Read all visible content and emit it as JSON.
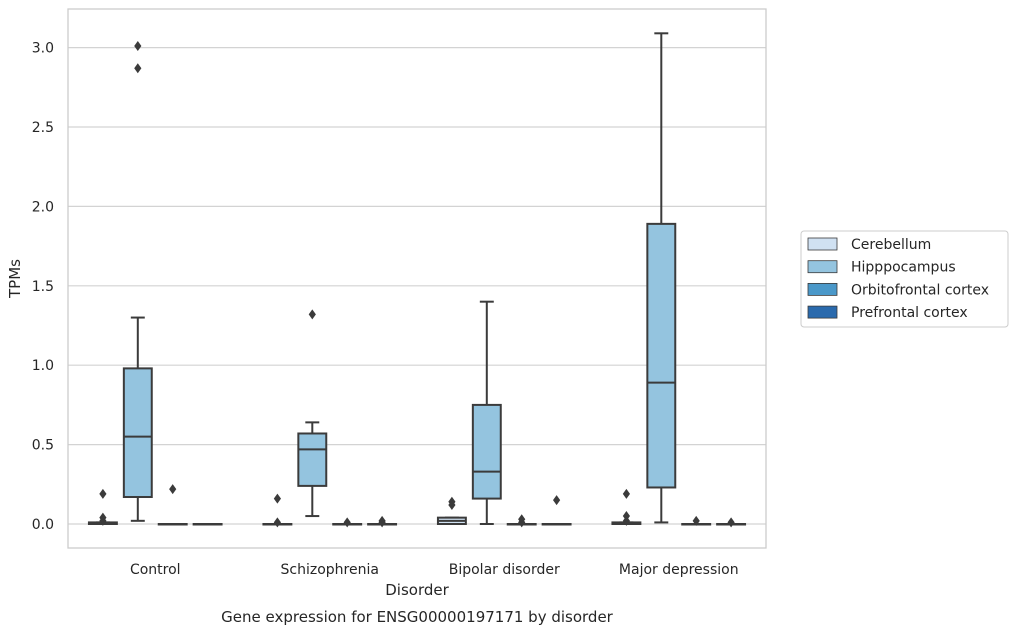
{
  "chart_data": {
    "type": "box",
    "caption": "Gene expression for ENSG00000197171 by disorder",
    "xlabel": "Disorder",
    "ylabel": "TPMs",
    "ylim": [
      -0.15,
      3.25
    ],
    "yticks": [
      "0.0",
      "0.5",
      "1.0",
      "1.5",
      "2.0",
      "2.5",
      "3.0"
    ],
    "grid": "horizontal",
    "legend_position": "right",
    "categories": [
      "Control",
      "Schizophrenia",
      "Bipolar disorder",
      "Major depression"
    ],
    "series": [
      {
        "name": "Cerebellum",
        "color": "#d0e1f2",
        "boxes": [
          {
            "whislo": 0.0,
            "q1": 0.0,
            "med": 0.0,
            "q3": 0.01,
            "whishi": 0.01,
            "fliers": [
              0.19,
              0.04,
              0.02
            ]
          },
          {
            "whislo": 0.0,
            "q1": 0.0,
            "med": 0.0,
            "q3": 0.0,
            "whishi": 0.0,
            "fliers": [
              0.16,
              0.01
            ]
          },
          {
            "whislo": 0.0,
            "q1": 0.0,
            "med": 0.02,
            "q3": 0.04,
            "whishi": 0.04,
            "fliers": [
              0.14,
              0.12
            ]
          },
          {
            "whislo": 0.0,
            "q1": 0.0,
            "med": 0.0,
            "q3": 0.01,
            "whishi": 0.01,
            "fliers": [
              0.19,
              0.05,
              0.02
            ]
          }
        ]
      },
      {
        "name": "Hipppocampus",
        "color": "#94c4df",
        "boxes": [
          {
            "whislo": 0.02,
            "q1": 0.17,
            "med": 0.55,
            "q3": 0.98,
            "whishi": 1.3,
            "fliers": [
              3.01,
              2.87
            ]
          },
          {
            "whislo": 0.05,
            "q1": 0.24,
            "med": 0.47,
            "q3": 0.57,
            "whishi": 0.64,
            "fliers": [
              1.32
            ]
          },
          {
            "whislo": 0.0,
            "q1": 0.16,
            "med": 0.33,
            "q3": 0.75,
            "whishi": 1.4,
            "fliers": []
          },
          {
            "whislo": 0.01,
            "q1": 0.23,
            "med": 0.89,
            "q3": 1.89,
            "whishi": 3.09,
            "fliers": []
          }
        ]
      },
      {
        "name": "Orbitofrontal cortex",
        "color": "#4a98c9",
        "boxes": [
          {
            "whislo": 0.0,
            "q1": 0.0,
            "med": 0.0,
            "q3": 0.0,
            "whishi": 0.0,
            "fliers": [
              0.22
            ]
          },
          {
            "whislo": 0.0,
            "q1": 0.0,
            "med": 0.0,
            "q3": 0.0,
            "whishi": 0.0,
            "fliers": [
              0.01
            ]
          },
          {
            "whislo": 0.0,
            "q1": 0.0,
            "med": 0.0,
            "q3": 0.0,
            "whishi": 0.0,
            "fliers": [
              0.03,
              0.01
            ]
          },
          {
            "whislo": 0.0,
            "q1": 0.0,
            "med": 0.0,
            "q3": 0.0,
            "whishi": 0.0,
            "fliers": [
              0.02
            ]
          }
        ]
      },
      {
        "name": "Prefrontal cortex",
        "color": "#2a6aad",
        "boxes": [
          {
            "whislo": 0.0,
            "q1": 0.0,
            "med": 0.0,
            "q3": 0.0,
            "whishi": 0.0,
            "fliers": []
          },
          {
            "whislo": 0.0,
            "q1": 0.0,
            "med": 0.0,
            "q3": 0.0,
            "whishi": 0.0,
            "fliers": [
              0.02,
              0.01
            ]
          },
          {
            "whislo": 0.0,
            "q1": 0.0,
            "med": 0.0,
            "q3": 0.0,
            "whishi": 0.0,
            "fliers": [
              0.15
            ]
          },
          {
            "whislo": 0.0,
            "q1": 0.0,
            "med": 0.0,
            "q3": 0.0,
            "whishi": 0.0,
            "fliers": [
              0.01
            ]
          }
        ]
      }
    ],
    "colors": {
      "grid": "#d3d3d3",
      "frame": "#cccccc",
      "box_edge": "#3b3b3b"
    }
  }
}
